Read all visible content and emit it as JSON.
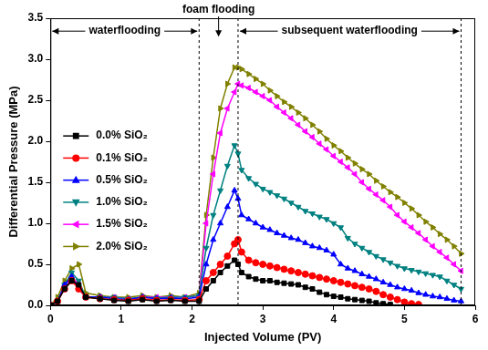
{
  "chart_data": {
    "type": "line",
    "x_label": "Injected Volume (PV)",
    "y_label": "Differential Pressure (MPa)",
    "xlim": [
      0,
      6
    ],
    "xticks": [
      0,
      1,
      2,
      3,
      4,
      5,
      6
    ],
    "ylim": [
      0,
      3.5
    ],
    "yticks": [
      {
        "value": 0,
        "label": "0.0"
      },
      {
        "value": 0.5,
        "label": "0.5"
      },
      {
        "value": 1,
        "label": "1.0"
      },
      {
        "value": 1.5,
        "label": "1.5"
      },
      {
        "value": 2,
        "label": "2.0"
      },
      {
        "value": 2.5,
        "label": "2.5"
      },
      {
        "value": 3,
        "label": "3.0"
      },
      {
        "value": 3.5,
        "label": "3.5"
      }
    ],
    "grid": false,
    "legend": "left",
    "phases": [
      {
        "label": "waterflooding",
        "start": 0,
        "end": 2.1
      },
      {
        "label": "foam flooding",
        "start": 2.1,
        "end": 2.65
      },
      {
        "label": "subsequent waterflooding",
        "start": 2.65,
        "end": 5.8
      }
    ],
    "x": [
      0,
      0.1,
      0.2,
      0.3,
      0.4,
      0.5,
      0.7,
      0.9,
      1.1,
      1.3,
      1.5,
      1.7,
      1.9,
      2.1,
      2.2,
      2.3,
      2.4,
      2.5,
      2.6,
      2.65,
      2.7,
      2.8,
      2.9,
      3.0,
      3.1,
      3.2,
      3.3,
      3.4,
      3.5,
      3.6,
      3.7,
      3.8,
      3.9,
      4.0,
      4.1,
      4.2,
      4.3,
      4.4,
      4.5,
      4.6,
      4.7,
      4.8,
      4.9,
      5.0,
      5.1,
      5.2,
      5.3,
      5.4,
      5.5,
      5.6,
      5.7,
      5.8
    ],
    "series": [
      {
        "name": "0.0% SiO₂",
        "color": "#000000",
        "marker": "square",
        "values": [
          0,
          0.05,
          0.2,
          0.3,
          0.25,
          0.1,
          0.08,
          0.06,
          0.05,
          0.07,
          0.05,
          0.06,
          0.05,
          0.05,
          0.2,
          0.3,
          0.4,
          0.48,
          0.55,
          0.5,
          0.4,
          0.35,
          0.32,
          0.3,
          0.3,
          0.28,
          0.27,
          0.26,
          0.25,
          0.22,
          0.2,
          0.16,
          0.13,
          0.11,
          0.1,
          0.08,
          0.07,
          0.06,
          0.05,
          0.03,
          0.02,
          0.01,
          null,
          null,
          null,
          null,
          null,
          null,
          null,
          null,
          null,
          null
        ]
      },
      {
        "name": "0.1% SiO₂",
        "color": "#ff0000",
        "marker": "circle",
        "values": [
          0,
          0.05,
          0.2,
          0.3,
          0.2,
          0.1,
          0.08,
          0.07,
          0.06,
          0.08,
          0.06,
          0.07,
          0.06,
          0.07,
          0.3,
          0.4,
          0.5,
          0.6,
          0.75,
          0.8,
          0.65,
          0.55,
          0.52,
          0.5,
          0.48,
          0.46,
          0.44,
          0.42,
          0.4,
          0.38,
          0.36,
          0.34,
          0.32,
          0.3,
          0.28,
          0.26,
          0.24,
          0.22,
          0.2,
          0.17,
          0.13,
          0.1,
          0.07,
          0.04,
          0.02,
          0.01,
          null,
          null,
          null,
          null,
          null,
          null
        ]
      },
      {
        "name": "0.5% SiO₂",
        "color": "#0000ff",
        "marker": "triangle-up",
        "values": [
          0,
          0.05,
          0.25,
          0.35,
          0.2,
          0.1,
          0.1,
          0.08,
          0.07,
          0.1,
          0.08,
          0.09,
          0.08,
          0.1,
          0.5,
          0.8,
          1.0,
          1.2,
          1.4,
          1.3,
          1.1,
          1.05,
          1.0,
          0.95,
          0.92,
          0.88,
          0.85,
          0.82,
          0.8,
          0.76,
          0.72,
          0.7,
          0.67,
          0.62,
          0.5,
          0.45,
          0.42,
          0.38,
          0.35,
          0.32,
          0.28,
          0.25,
          0.22,
          0.2,
          0.18,
          0.15,
          0.13,
          0.11,
          0.1,
          0.08,
          0.06,
          0.05
        ]
      },
      {
        "name": "1.0% SiO₂",
        "color": "#008080",
        "marker": "triangle-down",
        "values": [
          0,
          0.05,
          0.25,
          0.4,
          0.3,
          0.1,
          0.1,
          0.1,
          0.08,
          0.1,
          0.09,
          0.1,
          0.1,
          0.12,
          0.7,
          1.1,
          1.4,
          1.7,
          1.95,
          1.85,
          1.65,
          1.55,
          1.48,
          1.42,
          1.38,
          1.34,
          1.3,
          1.25,
          1.2,
          1.15,
          1.12,
          1.08,
          1.05,
          1.0,
          0.95,
          0.82,
          0.75,
          0.7,
          0.65,
          0.6,
          0.56,
          0.52,
          0.48,
          0.45,
          0.43,
          0.41,
          0.39,
          0.37,
          0.35,
          0.3,
          0.25,
          0.2
        ]
      },
      {
        "name": "1.5% SiO₂",
        "color": "#ff00ff",
        "marker": "triangle-left",
        "values": [
          0,
          0.05,
          0.2,
          0.35,
          0.25,
          0.1,
          0.1,
          0.1,
          0.08,
          0.1,
          0.1,
          0.1,
          0.1,
          0.12,
          1.0,
          1.6,
          2.1,
          2.4,
          2.6,
          2.7,
          2.68,
          2.65,
          2.6,
          2.55,
          2.5,
          2.42,
          2.35,
          2.28,
          2.2,
          2.12,
          2.05,
          1.97,
          1.9,
          1.82,
          1.75,
          1.68,
          1.6,
          1.5,
          1.42,
          1.35,
          1.28,
          1.2,
          1.1,
          1.02,
          0.95,
          0.88,
          0.8,
          0.72,
          0.65,
          0.58,
          0.5,
          0.42
        ]
      },
      {
        "name": "2.0% SiO₂",
        "color": "#808000",
        "marker": "triangle-right",
        "values": [
          0,
          0.1,
          0.3,
          0.45,
          0.5,
          0.15,
          0.12,
          0.1,
          0.1,
          0.12,
          0.1,
          0.12,
          0.1,
          0.15,
          1.1,
          1.8,
          2.4,
          2.7,
          2.9,
          2.9,
          2.88,
          2.82,
          2.76,
          2.7,
          2.62,
          2.55,
          2.48,
          2.42,
          2.35,
          2.28,
          2.2,
          2.12,
          2.03,
          1.95,
          1.88,
          1.8,
          1.73,
          1.66,
          1.6,
          1.52,
          1.45,
          1.38,
          1.32,
          1.25,
          1.18,
          1.1,
          1.02,
          0.95,
          0.87,
          0.8,
          0.72,
          0.63
        ]
      }
    ]
  }
}
